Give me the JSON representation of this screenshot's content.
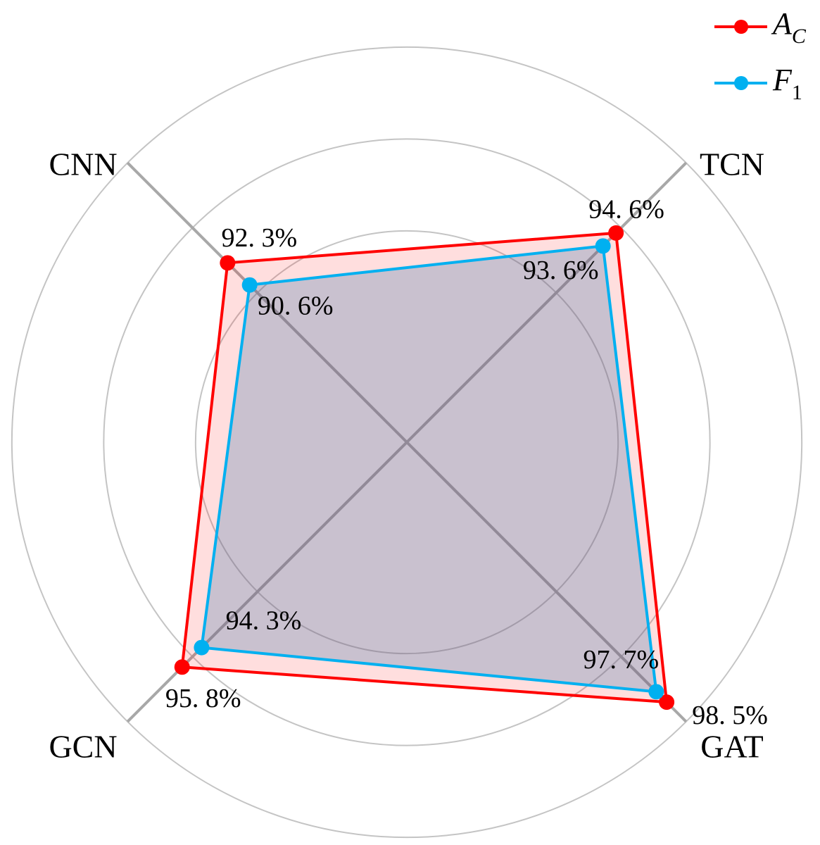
{
  "chart_data": {
    "type": "radar",
    "categories": [
      "TCN",
      "GAT",
      "GCN",
      "CNN"
    ],
    "series": [
      {
        "name": "AC",
        "color": "#ff0000",
        "values": [
          94.6,
          98.5,
          95.8,
          92.3
        ],
        "value_labels": [
          "94. 6%",
          "98. 5%",
          "95. 8%",
          "92. 3%"
        ]
      },
      {
        "name": "F1",
        "color": "#00b0f0",
        "values": [
          93.6,
          97.7,
          94.3,
          90.6
        ],
        "value_labels": [
          "93. 6%",
          "97. 7%",
          "94. 3%",
          "90. 6%"
        ]
      }
    ],
    "rlim": [
      78.5,
      100
    ],
    "rticks": [
      90,
      95,
      100
    ],
    "grid": true,
    "legend": "upper right"
  }
}
